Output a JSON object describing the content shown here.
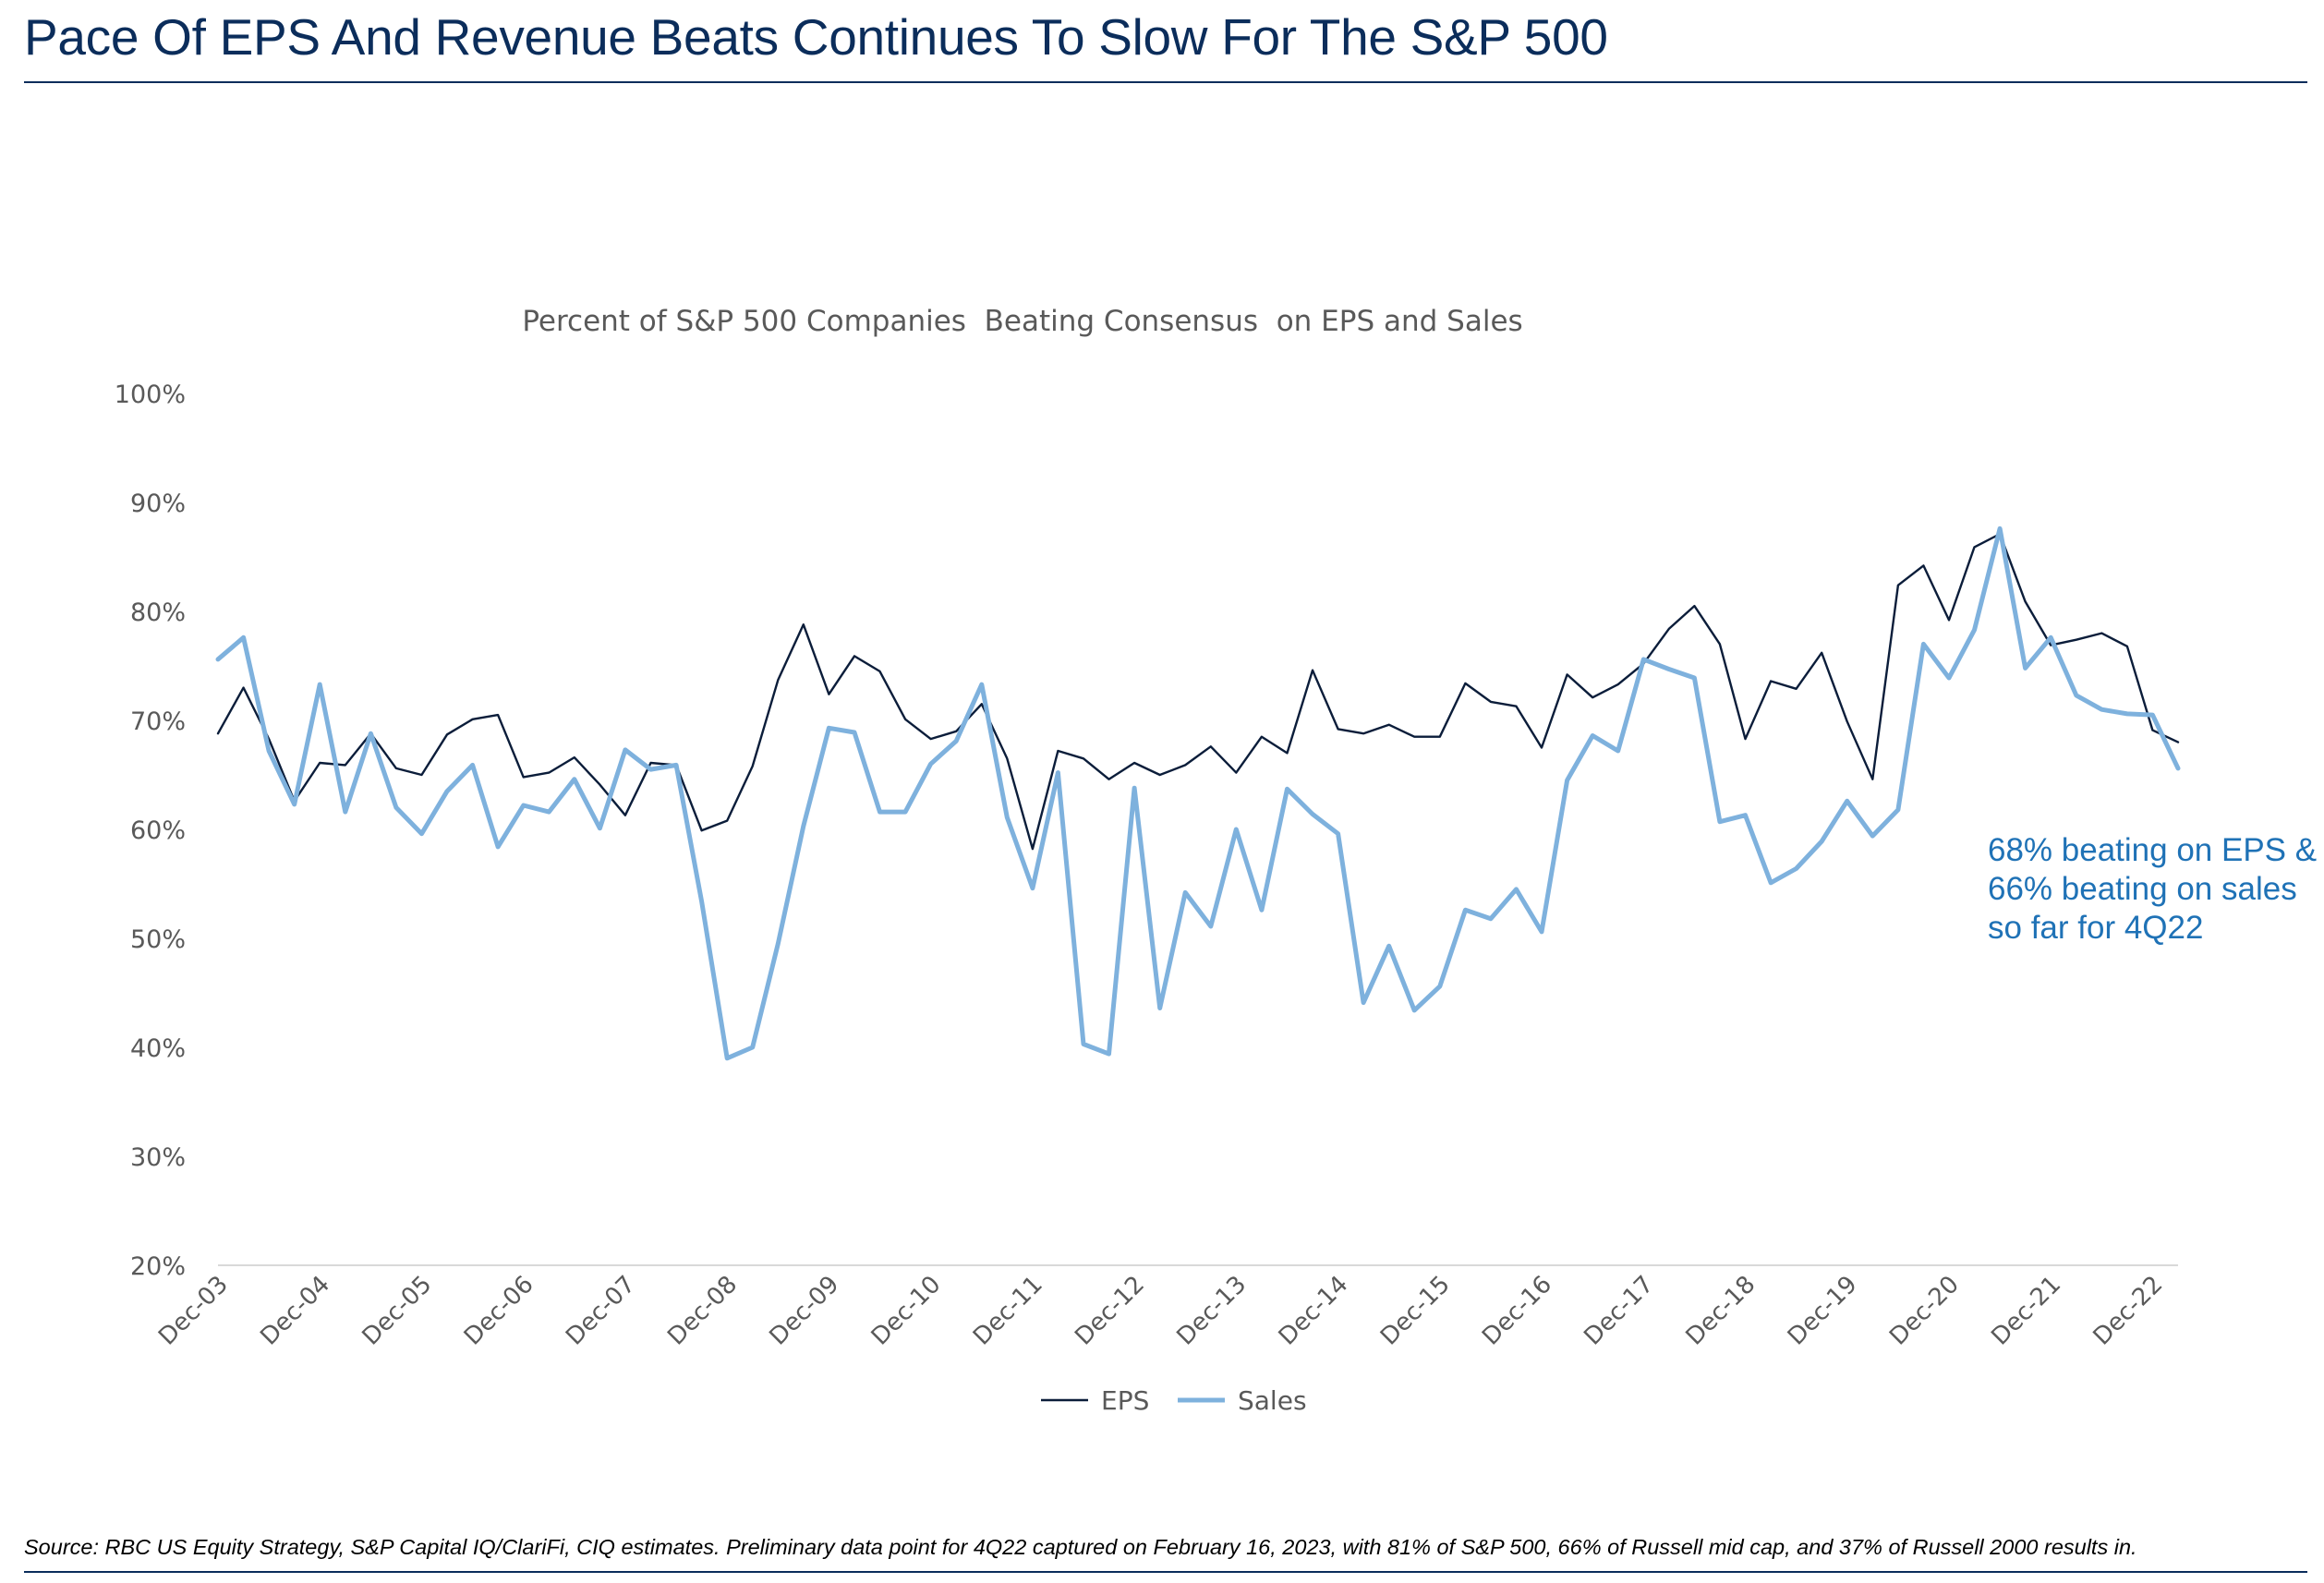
{
  "page": {
    "title": "Pace Of EPS And Revenue Beats Continues To Slow For The S&P 500",
    "source": "Source: RBC US Equity Strategy, S&P Capital IQ/ClariFi, CIQ estimates. Preliminary data point for 4Q22 captured on February 16, 2023, with 81% of S&P 500, 66% of Russell mid cap, and 37% of Russell 2000 results in.",
    "annotation": "68% beating on EPS & 66% beating on sales so far for 4Q22"
  },
  "colors": {
    "title": "#0b2d5b",
    "eps": "#0b1d3a",
    "sales": "#7eb1dd",
    "annotation": "#1f72b6",
    "axis_text": "#595959"
  },
  "chart_data": {
    "type": "line",
    "title": "Percent of S&P 500 Companies  Beating Consensus  on EPS and Sales",
    "x_tick_labels": [
      "Dec-03",
      "Dec-04",
      "Dec-05",
      "Dec-06",
      "Dec-07",
      "Dec-08",
      "Dec-09",
      "Dec-10",
      "Dec-11",
      "Dec-12",
      "Dec-13",
      "Dec-14",
      "Dec-15",
      "Dec-16",
      "Dec-17",
      "Dec-18",
      "Dec-19",
      "Dec-20",
      "Dec-21",
      "Dec-22"
    ],
    "y_tick_labels": [
      "20%",
      "30%",
      "40%",
      "50%",
      "60%",
      "70%",
      "80%",
      "90%",
      "100%"
    ],
    "ylim": [
      20,
      100
    ],
    "y_unit": "percent",
    "x_frequency": "quarterly, Dec-03 to Dec-22",
    "legend_position": "bottom-center",
    "grid": false,
    "series": [
      {
        "name": "EPS",
        "values": [
          68.8,
          73.0,
          68.3,
          62.6,
          66.1,
          65.9,
          68.8,
          65.6,
          65.0,
          68.7,
          70.1,
          70.5,
          64.8,
          65.2,
          66.6,
          64.1,
          61.3,
          66.1,
          65.9,
          59.9,
          60.8,
          65.8,
          73.7,
          78.8,
          72.4,
          75.9,
          74.5,
          70.1,
          68.3,
          69.0,
          71.5,
          66.5,
          58.2,
          67.2,
          66.5,
          64.6,
          66.1,
          65.0,
          65.9,
          67.6,
          65.2,
          68.5,
          67.0,
          74.6,
          69.2,
          68.8,
          69.6,
          68.5,
          68.5,
          73.4,
          71.7,
          71.3,
          67.5,
          74.2,
          72.1,
          73.3,
          75.2,
          78.4,
          80.5,
          77.0,
          68.3,
          73.6,
          72.9,
          76.2,
          69.9,
          64.6,
          82.4,
          84.2,
          79.2,
          85.9,
          87.1,
          80.9,
          76.9,
          77.4,
          78.0,
          76.8,
          69.1,
          68.0
        ]
      },
      {
        "name": "Sales",
        "values": [
          75.6,
          77.6,
          67.2,
          62.3,
          73.3,
          61.6,
          68.8,
          62.0,
          59.6,
          63.5,
          65.9,
          58.4,
          62.2,
          61.6,
          64.6,
          60.1,
          67.3,
          65.5,
          65.9,
          53.4,
          39.0,
          40.0,
          49.5,
          60.3,
          69.3,
          68.9,
          61.6,
          61.6,
          66.0,
          68.1,
          73.3,
          61.1,
          54.6,
          65.2,
          40.3,
          39.4,
          63.8,
          43.6,
          54.2,
          51.1,
          60.0,
          52.6,
          63.7,
          61.4,
          59.6,
          44.1,
          49.3,
          43.4,
          45.6,
          52.6,
          51.8,
          54.5,
          50.6,
          64.5,
          68.6,
          67.2,
          75.6,
          74.7,
          73.9,
          60.7,
          61.3,
          55.1,
          56.4,
          58.9,
          62.6,
          59.4,
          61.8,
          77.0,
          73.9,
          78.3,
          87.6,
          74.8,
          77.6,
          72.3,
          71.0,
          70.6,
          70.5,
          65.6
        ]
      }
    ]
  }
}
